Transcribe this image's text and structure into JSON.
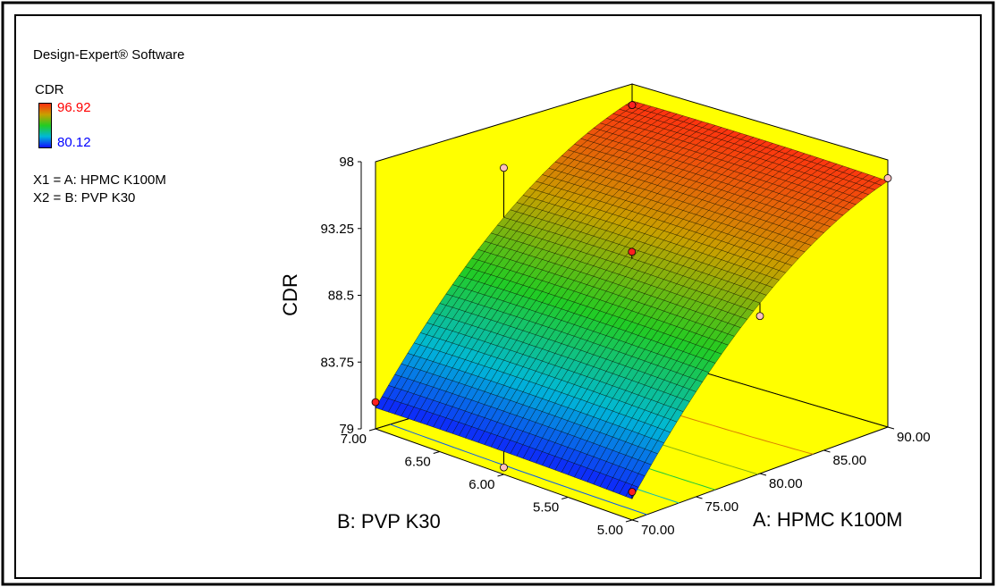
{
  "software_label": "Design-Expert® Software",
  "legend": {
    "response": "CDR",
    "high": "96.92",
    "low": "80.12",
    "high_color": "#ff0000",
    "low_color": "#0000ff",
    "x1": "X1 = A: HPMC  K100M",
    "x2": "X2 = B: PVP K30"
  },
  "colors": {
    "background": "#ffff00",
    "surface_high": "#ff3010",
    "surface_mid": "#22cc22",
    "surface_low": "#1010ff",
    "design_point": "#ff2020",
    "design_point_below": "#ffc0c0"
  },
  "chart_data": {
    "type": "surface3d",
    "title": "",
    "zlabel": "CDR",
    "xlabel": "A: HPMC  K100M",
    "ylabel": "B: PVP K30",
    "x_ticks": [
      "70.00",
      "75.00",
      "80.00",
      "85.00",
      "90.00"
    ],
    "y_ticks": [
      "5.00",
      "5.50",
      "6.00",
      "6.50",
      "7.00"
    ],
    "z_ticks": [
      "79",
      "83.75",
      "88.5",
      "93.25",
      "98"
    ],
    "xlim": [
      70,
      90
    ],
    "ylim": [
      5,
      7
    ],
    "zlim": [
      79,
      98
    ],
    "response_range": [
      80.12,
      96.92
    ],
    "surface_corners": [
      {
        "x": 70,
        "y": 7,
        "z": 80.1
      },
      {
        "x": 70,
        "y": 5,
        "z": 80.8
      },
      {
        "x": 90,
        "y": 5,
        "z": 97.0
      },
      {
        "x": 90,
        "y": 7,
        "z": 97.5
      }
    ],
    "design_points": [
      {
        "x": 70,
        "y": 7,
        "z": 80.9,
        "above": true
      },
      {
        "x": 70,
        "y": 5,
        "z": 81.0,
        "above": true
      },
      {
        "x": 80,
        "y": 6,
        "z": 91.8,
        "above": true
      },
      {
        "x": 90,
        "y": 7,
        "z": 96.5,
        "above": true
      },
      {
        "x": 90,
        "y": 5,
        "z": 96.7,
        "above": false
      },
      {
        "x": 80,
        "y": 7,
        "z": 94.8,
        "above": false
      },
      {
        "x": 80,
        "y": 5,
        "z": 90.2,
        "above": false
      },
      {
        "x": 70,
        "y": 6,
        "z": 79.5,
        "above": false
      }
    ],
    "contour_levels": [
      82,
      85,
      88,
      91,
      94
    ]
  }
}
